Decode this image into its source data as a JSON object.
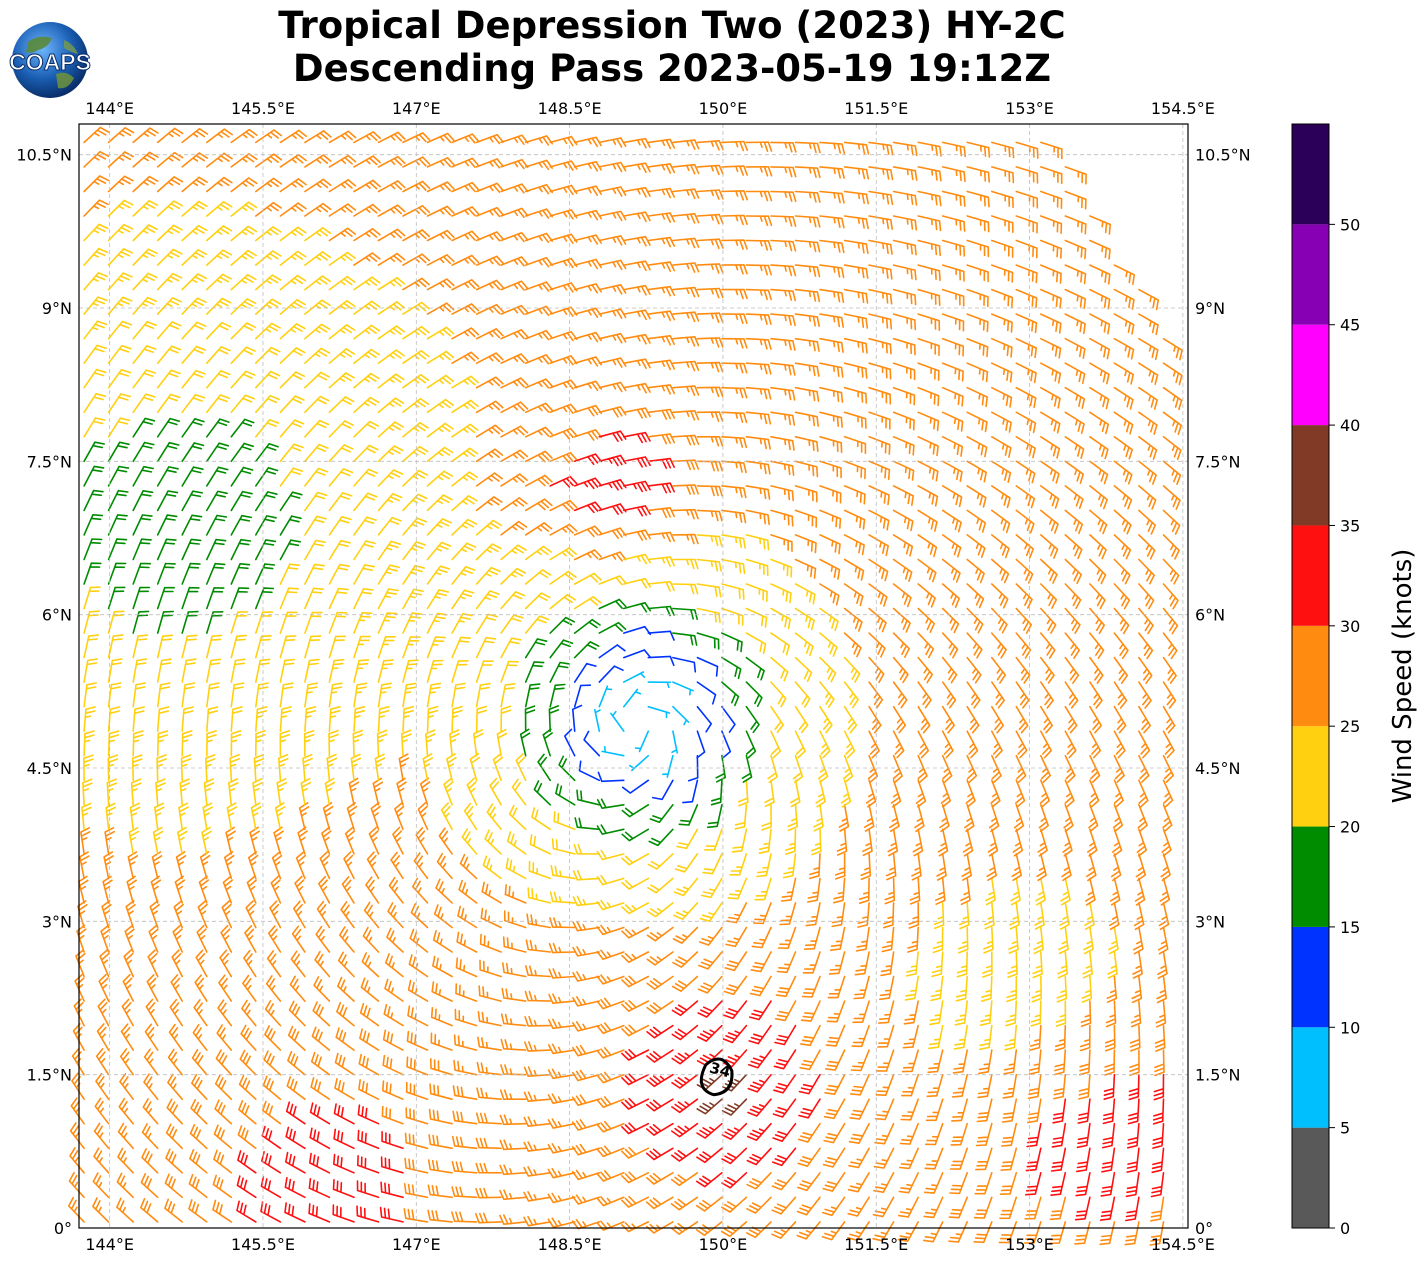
{
  "title": {
    "line1": "Tropical Depression Two (2023) HY-2C",
    "line2": "Descending Pass 2023-05-19 19:12Z"
  },
  "logo": {
    "text": "COAPS",
    "icon": "globe-logo-icon"
  },
  "map": {
    "lon_range": [
      143.7,
      154.55
    ],
    "lat_range": [
      0,
      10.8
    ],
    "lon_ticks": [
      {
        "value": 144,
        "label": "144°E"
      },
      {
        "value": 145.5,
        "label": "145.5°E"
      },
      {
        "value": 147,
        "label": "147°E"
      },
      {
        "value": 148.5,
        "label": "148.5°E"
      },
      {
        "value": 150,
        "label": "150°E"
      },
      {
        "value": 151.5,
        "label": "151.5°E"
      },
      {
        "value": 153,
        "label": "153°E"
      },
      {
        "value": 154.5,
        "label": "154.5°E"
      }
    ],
    "lat_ticks": [
      {
        "value": 0,
        "label": "0°"
      },
      {
        "value": 1.5,
        "label": "1.5°N"
      },
      {
        "value": 3,
        "label": "3°N"
      },
      {
        "value": 4.5,
        "label": "4.5°N"
      },
      {
        "value": 6,
        "label": "6°N"
      },
      {
        "value": 7.5,
        "label": "7.5°N"
      },
      {
        "value": 9,
        "label": "9°N"
      },
      {
        "value": 10.5,
        "label": "10.5°N"
      }
    ],
    "gridlines": true,
    "storm_center": {
      "lon": 149.2,
      "lat": 5.0
    },
    "contour": {
      "label": "34",
      "lon": 149.95,
      "lat": 1.48
    }
  },
  "colorbar": {
    "label": "Wind Speed (knots)",
    "bins": [
      {
        "min": 0,
        "max": 5,
        "color": "#595959"
      },
      {
        "min": 5,
        "max": 10,
        "color": "#00bfff"
      },
      {
        "min": 10,
        "max": 15,
        "color": "#0033ff"
      },
      {
        "min": 15,
        "max": 20,
        "color": "#008c00"
      },
      {
        "min": 20,
        "max": 25,
        "color": "#ffd010"
      },
      {
        "min": 25,
        "max": 30,
        "color": "#ff8c10"
      },
      {
        "min": 30,
        "max": 35,
        "color": "#ff1010"
      },
      {
        "min": 35,
        "max": 40,
        "color": "#803a25"
      },
      {
        "min": 40,
        "max": 45,
        "color": "#ff00ff"
      },
      {
        "min": 45,
        "max": 50,
        "color": "#8800b3"
      },
      {
        "min": 50,
        "max": 55,
        "color": "#2b0059"
      }
    ],
    "ticks": [
      "0",
      "5",
      "10",
      "15",
      "20",
      "25",
      "30",
      "35",
      "40",
      "45",
      "50"
    ]
  }
}
